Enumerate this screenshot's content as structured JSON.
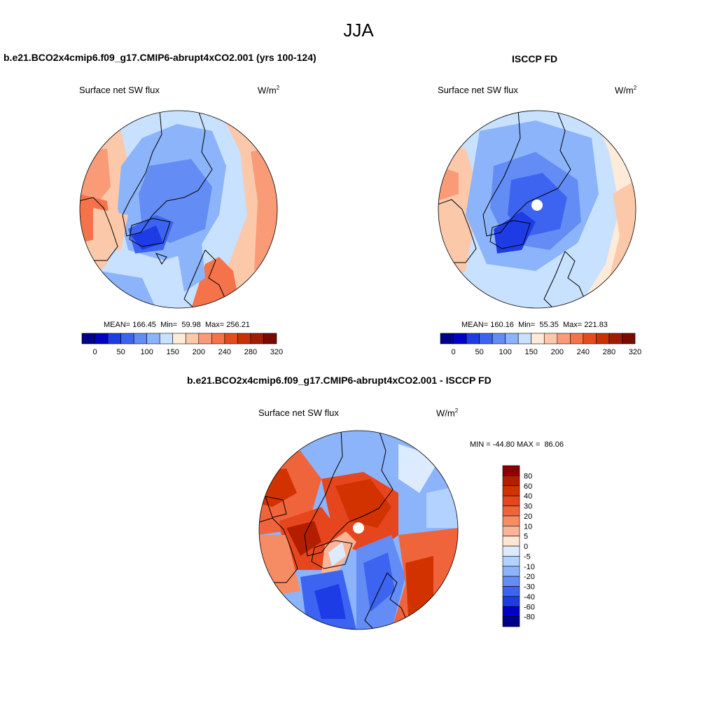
{
  "season": "JJA",
  "panels": [
    {
      "title": "b.e21.BCO2x4cmip6.f09_g17.CMIP6-abrupt4xCO2.001 (yrs 100-124)",
      "variable": "Surface net SW flux",
      "units": "W/m",
      "units_exp": "2",
      "stats": {
        "mean_label": "MEAN=",
        "mean": "166.45",
        "min_label": "Min=",
        "min": "59.98",
        "max_label": "Max=",
        "max": "256.21"
      }
    },
    {
      "title": "ISCCP FD",
      "variable": "Surface net SW flux",
      "units": "W/m",
      "units_exp": "2",
      "stats": {
        "mean_label": "MEAN=",
        "mean": "160.16",
        "min_label": "Min=",
        "min": "55.35",
        "max_label": "Max=",
        "max": "221.83"
      }
    },
    {
      "title": "b.e21.BCO2x4cmip6.f09_g17.CMIP6-abrupt4xCO2.001 - ISCCP FD",
      "variable": "Surface net SW flux",
      "units": "W/m",
      "units_exp": "2",
      "minmax": {
        "min_label": "MIN =",
        "min": "-44.80",
        "max_label": "MAX =",
        "max": "86.06"
      }
    }
  ],
  "colorbar_abs": {
    "colors": [
      "#00008b",
      "#0000c8",
      "#1e3ce6",
      "#3c64f0",
      "#648cf5",
      "#8cb4fa",
      "#c8e1ff",
      "#ffebd7",
      "#fcc8aa",
      "#fa9b78",
      "#f5734b",
      "#e64b1e",
      "#c83205",
      "#a01e00",
      "#780a00"
    ],
    "labels": [
      "0",
      "50",
      "100",
      "150",
      "200",
      "240",
      "280",
      "320"
    ]
  },
  "colorbar_diff": {
    "colors": [
      "#8b0000",
      "#b41e00",
      "#d23200",
      "#e6461e",
      "#f0643c",
      "#f58c64",
      "#fab496",
      "#ffe6d2",
      "#dcebff",
      "#b4d2ff",
      "#8cb4fa",
      "#648cf5",
      "#3c64f0",
      "#1e3ce6",
      "#0000c8",
      "#00008b"
    ],
    "labels": [
      "80",
      "60",
      "40",
      "30",
      "20",
      "10",
      "5",
      "0",
      "-5",
      "-10",
      "-20",
      "-30",
      "-40",
      "-60",
      "-80"
    ]
  }
}
